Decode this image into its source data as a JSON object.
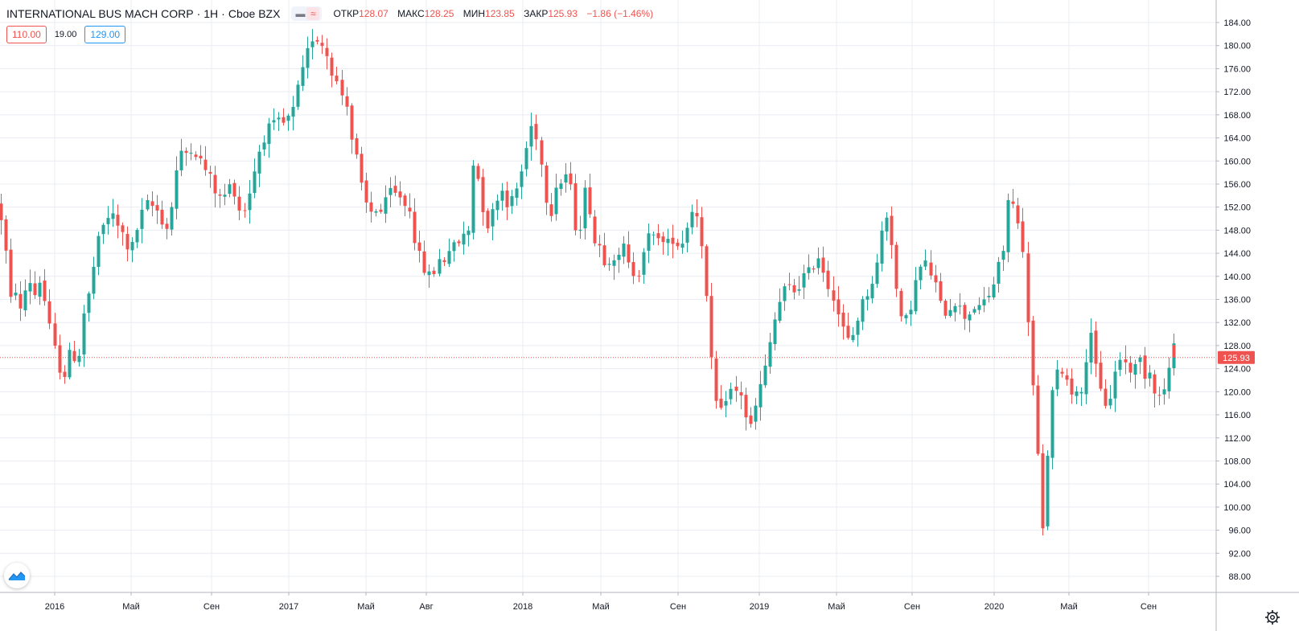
{
  "header": {
    "symbol": "INTERNATIONAL BUS MACH CORP",
    "interval": "1H",
    "exchange": "Cboe BZX",
    "dot": "·",
    "icon_minus": "minus-icon",
    "icon_approx": "approx-icon",
    "o_label": "ОТКР",
    "o_value": "128.07",
    "h_label": "МАКС",
    "h_value": "128.25",
    "l_label": "МИН",
    "l_value": "123.85",
    "c_label": "ЗАКР",
    "c_value": "125.93",
    "change": "−1.86 (−1.46%)"
  },
  "trade": {
    "sell_price": "110.00",
    "spread": "19.00",
    "buy_price": "129.00"
  },
  "colors": {
    "up": "#26a69a",
    "down": "#ef5350",
    "grid": "#e9ecf2",
    "text": "#131722",
    "price_line": "#ef5350"
  },
  "chart_data": {
    "type": "candlestick",
    "y_ticks": [
      "184.00",
      "180.00",
      "176.00",
      "172.00",
      "168.00",
      "164.00",
      "160.00",
      "156.00",
      "152.00",
      "148.00",
      "144.00",
      "140.00",
      "136.00",
      "132.00",
      "128.00",
      "124.00",
      "120.00",
      "116.00",
      "112.00",
      "108.00",
      "104.00",
      "100.00",
      "96.00",
      "92.00",
      "88.00"
    ],
    "ylim": [
      85.5,
      186
    ],
    "x_ticks": [
      "2016",
      "Май",
      "Сен",
      "2017",
      "Май",
      "Авг",
      "2018",
      "Май",
      "Сен",
      "2019",
      "Май",
      "Сен",
      "2020",
      "Май",
      "Сен"
    ],
    "last_price": "125.93",
    "last_price_value": 125.93,
    "close_path": [
      [
        0,
        151
      ],
      [
        6,
        146
      ],
      [
        12,
        135
      ],
      [
        18,
        139
      ],
      [
        24,
        133
      ],
      [
        30,
        137
      ],
      [
        36,
        140
      ],
      [
        42,
        136
      ],
      [
        48,
        140
      ],
      [
        54,
        137
      ],
      [
        60,
        132
      ],
      [
        66,
        128
      ],
      [
        72,
        125
      ],
      [
        78,
        122
      ],
      [
        84,
        126
      ],
      [
        90,
        127
      ],
      [
        96,
        124
      ],
      [
        102,
        133
      ],
      [
        108,
        135
      ],
      [
        114,
        140
      ],
      [
        120,
        145
      ],
      [
        126,
        148
      ],
      [
        132,
        150
      ],
      [
        138,
        151
      ],
      [
        144,
        149
      ],
      [
        150,
        148
      ],
      [
        156,
        146
      ],
      [
        162,
        144
      ],
      [
        168,
        147
      ],
      [
        174,
        150
      ],
      [
        180,
        152
      ],
      [
        186,
        153
      ],
      [
        192,
        151
      ],
      [
        198,
        152
      ],
      [
        204,
        147
      ],
      [
        210,
        150
      ],
      [
        216,
        155
      ],
      [
        222,
        162
      ],
      [
        228,
        160
      ],
      [
        234,
        163
      ],
      [
        240,
        162
      ],
      [
        246,
        161
      ],
      [
        252,
        159
      ],
      [
        258,
        158
      ],
      [
        264,
        156
      ],
      [
        270,
        154
      ],
      [
        276,
        153
      ],
      [
        282,
        155
      ],
      [
        288,
        156
      ],
      [
        294,
        154
      ],
      [
        300,
        150
      ],
      [
        306,
        153
      ],
      [
        312,
        156
      ],
      [
        318,
        160
      ],
      [
        324,
        163
      ],
      [
        330,
        165
      ],
      [
        336,
        166
      ],
      [
        342,
        166
      ],
      [
        348,
        167
      ],
      [
        354,
        166
      ],
      [
        360,
        168
      ],
      [
        366,
        169
      ],
      [
        372,
        174
      ],
      [
        378,
        176
      ],
      [
        384,
        180
      ],
      [
        390,
        182
      ],
      [
        396,
        181
      ],
      [
        402,
        180
      ],
      [
        408,
        178
      ],
      [
        414,
        175
      ],
      [
        420,
        173
      ],
      [
        426,
        171
      ],
      [
        432,
        170
      ],
      [
        438,
        162
      ],
      [
        444,
        160
      ],
      [
        450,
        154
      ],
      [
        456,
        152
      ],
      [
        462,
        151
      ],
      [
        468,
        152
      ],
      [
        474,
        151
      ],
      [
        480,
        153
      ],
      [
        486,
        155
      ],
      [
        492,
        154
      ],
      [
        498,
        154
      ],
      [
        504,
        152
      ],
      [
        510,
        152
      ],
      [
        516,
        146
      ],
      [
        522,
        143
      ],
      [
        528,
        141
      ],
      [
        534,
        140
      ],
      [
        540,
        141
      ],
      [
        546,
        143
      ],
      [
        552,
        143
      ],
      [
        558,
        145
      ],
      [
        564,
        145
      ],
      [
        570,
        146
      ],
      [
        576,
        147
      ],
      [
        582,
        148
      ],
      [
        588,
        160
      ],
      [
        594,
        157
      ],
      [
        600,
        152
      ],
      [
        606,
        149
      ],
      [
        612,
        151
      ],
      [
        618,
        154
      ],
      [
        624,
        155
      ],
      [
        630,
        153
      ],
      [
        636,
        153
      ],
      [
        642,
        155
      ],
      [
        648,
        158
      ],
      [
        654,
        162
      ],
      [
        660,
        166
      ],
      [
        666,
        165
      ],
      [
        672,
        160
      ],
      [
        678,
        154
      ],
      [
        684,
        151
      ],
      [
        690,
        156
      ],
      [
        696,
        156
      ],
      [
        702,
        158
      ],
      [
        708,
        156
      ],
      [
        714,
        149
      ],
      [
        720,
        148
      ],
      [
        726,
        155
      ],
      [
        732,
        153
      ],
      [
        738,
        146
      ],
      [
        744,
        146
      ],
      [
        750,
        143
      ],
      [
        756,
        143
      ],
      [
        762,
        144
      ],
      [
        768,
        142
      ],
      [
        774,
        146
      ],
      [
        780,
        142
      ],
      [
        786,
        141
      ],
      [
        792,
        140
      ],
      [
        798,
        144
      ],
      [
        804,
        147
      ],
      [
        810,
        146
      ],
      [
        816,
        148
      ],
      [
        822,
        146
      ],
      [
        828,
        145
      ],
      [
        834,
        147
      ],
      [
        840,
        146
      ],
      [
        846,
        145
      ],
      [
        852,
        148
      ],
      [
        858,
        151
      ],
      [
        864,
        152
      ],
      [
        870,
        149
      ],
      [
        876,
        141
      ],
      [
        882,
        128
      ],
      [
        888,
        120
      ],
      [
        894,
        115
      ],
      [
        900,
        118
      ],
      [
        906,
        121
      ],
      [
        912,
        119
      ],
      [
        918,
        121
      ],
      [
        924,
        118
      ],
      [
        930,
        113
      ],
      [
        936,
        115
      ],
      [
        942,
        120
      ],
      [
        948,
        122
      ],
      [
        954,
        126
      ],
      [
        960,
        131
      ],
      [
        966,
        134
      ],
      [
        972,
        137
      ],
      [
        978,
        138
      ],
      [
        984,
        138
      ],
      [
        990,
        137
      ],
      [
        996,
        140
      ],
      [
        1002,
        140
      ],
      [
        1008,
        141
      ],
      [
        1014,
        143
      ],
      [
        1020,
        144
      ],
      [
        1026,
        139
      ],
      [
        1032,
        138
      ],
      [
        1038,
        136
      ],
      [
        1044,
        132
      ],
      [
        1050,
        130
      ],
      [
        1056,
        128
      ],
      [
        1062,
        131
      ],
      [
        1068,
        134
      ],
      [
        1074,
        136
      ],
      [
        1080,
        138
      ],
      [
        1086,
        140
      ],
      [
        1092,
        143
      ],
      [
        1098,
        150
      ],
      [
        1104,
        151
      ],
      [
        1110,
        144
      ],
      [
        1116,
        135
      ],
      [
        1122,
        131
      ],
      [
        1128,
        133
      ],
      [
        1134,
        136
      ],
      [
        1140,
        140
      ],
      [
        1146,
        142
      ],
      [
        1152,
        142
      ],
      [
        1158,
        140
      ],
      [
        1164,
        138
      ],
      [
        1170,
        134
      ],
      [
        1176,
        134
      ],
      [
        1182,
        135
      ],
      [
        1188,
        136
      ],
      [
        1194,
        134
      ],
      [
        1200,
        133
      ],
      [
        1206,
        134
      ],
      [
        1212,
        135
      ],
      [
        1218,
        134
      ],
      [
        1224,
        136
      ],
      [
        1230,
        137
      ],
      [
        1236,
        139
      ],
      [
        1242,
        142
      ],
      [
        1248,
        145
      ],
      [
        1254,
        154
      ],
      [
        1260,
        152
      ],
      [
        1266,
        150
      ],
      [
        1272,
        143
      ],
      [
        1278,
        132
      ],
      [
        1284,
        120
      ],
      [
        1290,
        108
      ],
      [
        1296,
        95
      ],
      [
        1302,
        110
      ],
      [
        1308,
        120
      ],
      [
        1314,
        123
      ],
      [
        1320,
        124
      ],
      [
        1326,
        122
      ],
      [
        1332,
        120
      ],
      [
        1338,
        121
      ],
      [
        1344,
        119
      ],
      [
        1350,
        126
      ],
      [
        1356,
        131
      ],
      [
        1362,
        124
      ],
      [
        1368,
        120
      ],
      [
        1374,
        118
      ],
      [
        1380,
        119
      ],
      [
        1386,
        123
      ],
      [
        1392,
        126
      ],
      [
        1398,
        125
      ],
      [
        1404,
        124
      ],
      [
        1410,
        124
      ],
      [
        1416,
        126
      ],
      [
        1422,
        123
      ],
      [
        1428,
        124
      ],
      [
        1434,
        121
      ],
      [
        1440,
        119
      ],
      [
        1446,
        120
      ],
      [
        1452,
        123
      ],
      [
        1458,
        128
      ],
      [
        1462,
        126
      ]
    ]
  }
}
